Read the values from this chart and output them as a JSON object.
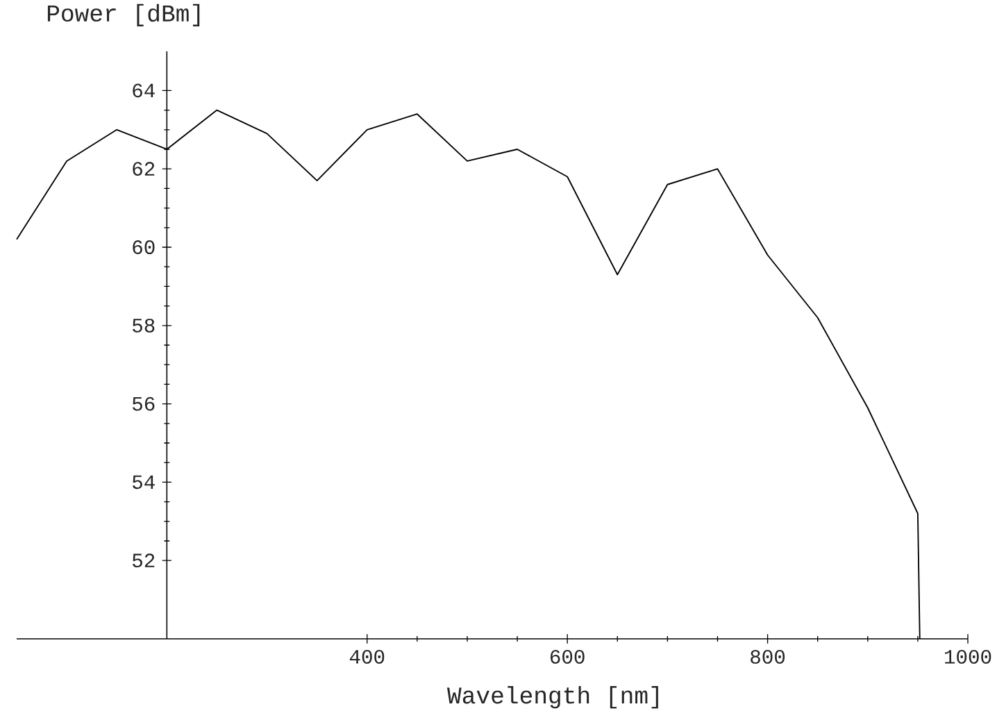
{
  "chart_data": {
    "type": "line",
    "xlabel": "Wavelength [nm]",
    "ylabel": "Power [dBm]",
    "x": [
      50,
      100,
      150,
      200,
      250,
      300,
      350,
      400,
      450,
      500,
      550,
      600,
      650,
      700,
      750,
      800,
      850,
      900,
      950,
      952
    ],
    "values": [
      60.2,
      62.2,
      63.0,
      62.5,
      63.5,
      62.9,
      61.7,
      63.0,
      63.4,
      62.2,
      62.5,
      61.8,
      59.3,
      61.6,
      62.0,
      59.8,
      58.2,
      55.9,
      53.2,
      50.0
    ],
    "color": "#000000",
    "xlim": [
      50,
      1000
    ],
    "ylim": [
      50,
      65
    ],
    "xticks": [
      400,
      600,
      800,
      1000
    ],
    "yticks": [
      52,
      54,
      56,
      58,
      60,
      62,
      64
    ],
    "grid": false,
    "marker": "none",
    "line_style": "solid"
  }
}
